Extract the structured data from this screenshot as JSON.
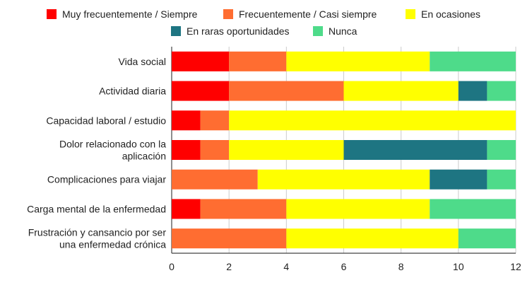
{
  "chart_data": {
    "type": "bar",
    "orientation": "horizontal",
    "stacked": true,
    "title": "",
    "xlabel": "",
    "ylabel": "",
    "xlim": [
      0,
      12
    ],
    "x_ticks": [
      0,
      2,
      4,
      6,
      8,
      10,
      12
    ],
    "grid": true,
    "legend_position": "top",
    "categories": [
      [
        "Vida social"
      ],
      [
        "Actividad diaria"
      ],
      [
        "Capacidad laboral / estudio"
      ],
      [
        "Dolor relacionado con la",
        "aplicación"
      ],
      [
        "Complicaciones para viajar"
      ],
      [
        "Carga mental de la enfermedad"
      ],
      [
        "Frustración y cansancio por ser",
        "una enfermedad crónica"
      ]
    ],
    "series": [
      {
        "name": "Muy frecuentemente / Siempre",
        "color": "#ff0000",
        "values": [
          2,
          2,
          1,
          1,
          0,
          1,
          0
        ]
      },
      {
        "name": "Frecuentemente / Casi siempre",
        "color": "#ff6d31",
        "values": [
          2,
          4,
          1,
          1,
          3,
          3,
          4
        ]
      },
      {
        "name": "En ocasiones",
        "color": "#ffff00",
        "values": [
          5,
          4,
          10,
          4,
          6,
          5,
          6
        ]
      },
      {
        "name": "En raras oportunidades",
        "color": "#1e7582",
        "values": [
          0,
          1,
          0,
          5,
          2,
          0,
          0
        ]
      },
      {
        "name": "Nunca",
        "color": "#4edb8a",
        "values": [
          3,
          1,
          0,
          1,
          1,
          3,
          2
        ]
      }
    ]
  }
}
